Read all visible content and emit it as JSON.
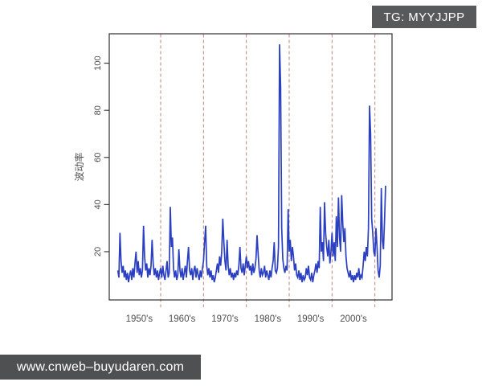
{
  "watermark_badge": {
    "label": "TG: MYYJJPP"
  },
  "footer_bar": {
    "label": "www.cnweb–buyudaren.com"
  },
  "colors": {
    "series": "#2b3fc1",
    "grid": "#c57f7f",
    "axis": "#2e2e2e",
    "tick_text": "#4d4d4d",
    "badge_bg": "#58595b",
    "footer_bg": "#4f5052"
  },
  "chart_data": {
    "type": "line",
    "title": "",
    "xlabel": "",
    "ylabel": "波动率",
    "xlim": [
      1948,
      2014
    ],
    "ylim": [
      -0.5,
      112.5
    ],
    "grid": "vertical-dashed",
    "grid_lines_x": [
      1960,
      1970,
      1980,
      1990,
      2000,
      2010
    ],
    "x_tick_labels": [
      "1950's",
      "1960's",
      "1970's",
      "1980's",
      "1990's",
      "2000's"
    ],
    "x_tick_label_positions": [
      1955,
      1965,
      1975,
      1985,
      1995,
      2005
    ],
    "y_ticks": [
      20,
      40,
      60,
      80,
      100
    ],
    "x_start": 1950.0,
    "x_step": 0.25,
    "values": [
      12,
      9,
      28,
      16,
      11,
      14,
      9,
      12,
      8,
      11,
      7,
      10,
      12,
      8,
      13,
      9,
      15,
      20,
      11,
      16,
      10,
      13,
      9,
      12,
      31,
      18,
      12,
      15,
      9,
      13,
      10,
      14,
      25,
      15,
      10,
      13,
      9,
      12,
      8,
      11,
      13,
      9,
      14,
      10,
      8,
      12,
      16,
      9,
      11,
      39,
      22,
      26,
      13,
      9,
      12,
      8,
      10,
      21,
      12,
      9,
      13,
      8,
      11,
      14,
      9,
      16,
      22,
      12,
      10,
      13,
      8,
      12,
      14,
      9,
      13,
      10,
      8,
      12,
      9,
      13,
      16,
      24,
      31,
      14,
      10,
      13,
      9,
      12,
      8,
      10,
      7,
      9,
      12,
      15,
      11,
      18,
      14,
      20,
      34,
      24,
      16,
      12,
      25,
      14,
      10,
      13,
      9,
      11,
      8,
      11,
      9,
      12,
      10,
      14,
      22,
      13,
      11,
      15,
      10,
      14,
      18,
      13,
      16,
      12,
      14,
      10,
      15,
      11,
      13,
      17,
      27,
      19,
      12,
      9,
      13,
      10,
      11,
      14,
      9,
      12,
      10,
      8,
      12,
      9,
      13,
      16,
      24,
      12,
      11,
      13,
      22,
      108,
      90,
      30,
      17,
      13,
      11,
      14,
      12,
      38,
      20,
      25,
      16,
      22,
      18,
      12,
      15,
      10,
      9,
      12,
      8,
      11,
      7,
      10,
      8,
      9,
      13,
      10,
      14,
      9,
      8,
      11,
      7,
      10,
      12,
      15,
      11,
      16,
      13,
      39,
      20,
      24,
      16,
      41,
      28,
      22,
      18,
      25,
      15,
      20,
      28,
      18,
      24,
      16,
      35,
      22,
      43,
      26,
      20,
      44,
      32,
      24,
      30,
      18,
      13,
      11,
      9,
      12,
      8,
      10,
      7,
      10,
      8,
      11,
      9,
      13,
      8,
      10,
      9,
      14,
      20,
      16,
      22,
      18,
      30,
      82,
      70,
      34,
      28,
      20,
      18,
      30,
      22,
      12,
      9,
      14,
      47,
      25,
      21,
      33,
      48
    ]
  }
}
